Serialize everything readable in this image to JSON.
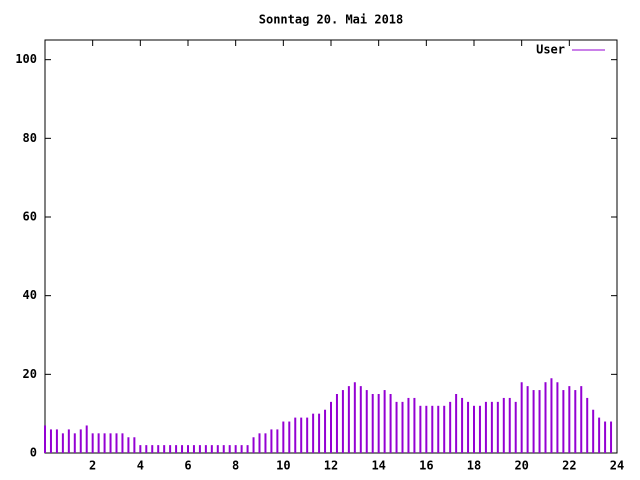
{
  "chart_data": {
    "type": "impulse",
    "title": "Sonntag 20. Mai 2018",
    "x": [
      0,
      0.25,
      0.5,
      0.75,
      1,
      1.25,
      1.5,
      1.75,
      2,
      2.25,
      2.5,
      2.75,
      3,
      3.25,
      3.5,
      3.75,
      4,
      4.25,
      4.5,
      4.75,
      5,
      5.25,
      5.5,
      5.75,
      6,
      6.25,
      6.5,
      6.75,
      7,
      7.25,
      7.5,
      7.75,
      8,
      8.25,
      8.5,
      8.75,
      9,
      9.25,
      9.5,
      9.75,
      10,
      10.25,
      10.5,
      10.75,
      11,
      11.25,
      11.5,
      11.75,
      12,
      12.25,
      12.5,
      12.75,
      13,
      13.25,
      13.5,
      13.75,
      14,
      14.25,
      14.5,
      14.75,
      15,
      15.25,
      15.5,
      15.75,
      16,
      16.25,
      16.5,
      16.75,
      17,
      17.25,
      17.5,
      17.75,
      18,
      18.25,
      18.5,
      18.75,
      19,
      19.25,
      19.5,
      19.75,
      20,
      20.25,
      20.5,
      20.75,
      21,
      21.25,
      21.5,
      21.75,
      22,
      22.25,
      22.5,
      22.75,
      23,
      23.25,
      23.5,
      23.75
    ],
    "series": [
      {
        "name": "User",
        "color": "#9400d3",
        "values": [
          7,
          6,
          6,
          5,
          6,
          5,
          6,
          7,
          5,
          5,
          5,
          5,
          5,
          5,
          4,
          4,
          2,
          2,
          2,
          2,
          2,
          2,
          2,
          2,
          2,
          2,
          2,
          2,
          2,
          2,
          2,
          2,
          2,
          2,
          2,
          4,
          5,
          5,
          6,
          6,
          8,
          8,
          9,
          9,
          9,
          10,
          10,
          11,
          13,
          15,
          16,
          17,
          18,
          17,
          16,
          15,
          15,
          16,
          15,
          13,
          13,
          14,
          14,
          12,
          12,
          12,
          12,
          12,
          13,
          15,
          14,
          13,
          12,
          12,
          13,
          13,
          13,
          14,
          14,
          13,
          18,
          17,
          16,
          16,
          18,
          19,
          18,
          16,
          17,
          16,
          17,
          14,
          11,
          9,
          8,
          8
        ]
      }
    ],
    "xlim": [
      0,
      24
    ],
    "xticks": [
      2,
      4,
      6,
      8,
      10,
      12,
      14,
      16,
      18,
      20,
      22,
      24
    ],
    "ylim": [
      0,
      105
    ],
    "yticks": [
      0,
      20,
      40,
      60,
      80,
      100
    ],
    "legend": "top-right"
  }
}
